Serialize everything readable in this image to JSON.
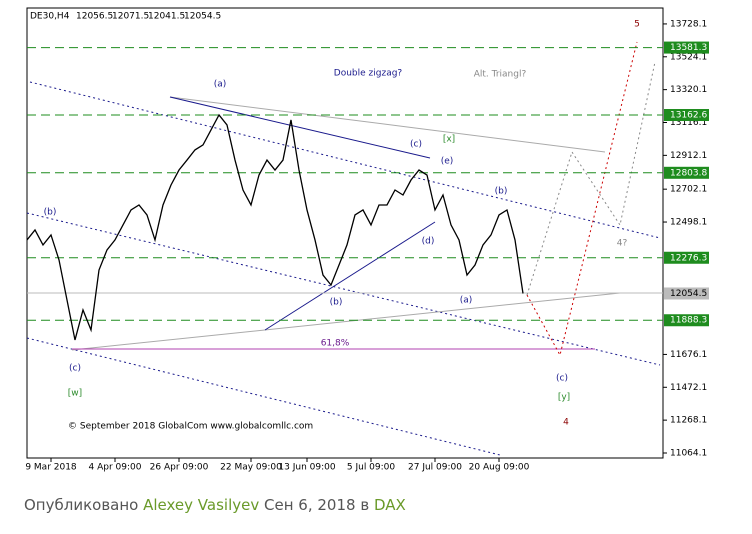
{
  "chart_data": {
    "type": "line",
    "symbol": "DE30,H4",
    "ohlc": [
      12056.5,
      12071.5,
      12041.5,
      12054.5
    ],
    "series": [
      {
        "color": "#000000",
        "values": [
          12387,
          12449,
          12356,
          12418,
          12263,
          12014,
          11766,
          11952,
          11828,
          12200,
          12325,
          12387,
          12480,
          12573,
          12604,
          12542,
          12387,
          12604,
          12728,
          12821,
          12883,
          12946,
          12977,
          13070,
          13163,
          13101,
          12883,
          12697,
          12604,
          12790,
          12883,
          12821,
          12883,
          13132,
          12821,
          12573,
          12387,
          12169,
          12107,
          12231,
          12356,
          12542,
          12573,
          12480,
          12604,
          12604,
          12697,
          12666,
          12759,
          12821,
          12790,
          12573,
          12666,
          12480,
          12387,
          12169,
          12231,
          12356,
          12418,
          12542,
          12573,
          12387,
          12054.5
        ]
      }
    ],
    "xlim": [
      0,
      79.5
    ],
    "xticks": [
      {
        "value": 3,
        "label": "9 Mar 2018"
      },
      {
        "value": 11,
        "label": "4 Apr 09:00"
      },
      {
        "value": 19,
        "label": "26 Apr 09:00"
      },
      {
        "value": 28,
        "label": "22 May 09:00"
      },
      {
        "value": 35,
        "label": "13 Jun 09:00"
      },
      {
        "value": 43,
        "label": "5 Jul 09:00"
      },
      {
        "value": 51,
        "label": "27 Jul 09:00"
      },
      {
        "value": 59,
        "label": "20 Aug 09:00"
      }
    ],
    "ylim": [
      11033,
      13827
    ],
    "yticks": [
      13728.1,
      13524.1,
      13320.1,
      13116.1,
      12912.1,
      12702.1,
      12498.1,
      11676.1,
      11472.1,
      11268.1,
      11064.1
    ],
    "levels": [
      13581.3,
      13162.6,
      12803.8,
      12276.3,
      11888.3
    ],
    "level_color": "#1e8c1e",
    "annotations": [
      {
        "text": "(a)",
        "color": "#1a1a8c"
      },
      {
        "text": "Double zigzag?",
        "color": "#1a1a8c"
      },
      {
        "text": "Alt. Triangl?",
        "color": "#888888"
      },
      {
        "text": "5",
        "color": "#8b0000"
      },
      {
        "text": "[x]",
        "color": "#2a8a2a"
      },
      {
        "text": "(c)",
        "color": "#1a1a8c"
      },
      {
        "text": "(e)",
        "color": "#1a1a8c"
      },
      {
        "text": "(b)",
        "color": "#1a1a8c"
      },
      {
        "text": "(d)",
        "color": "#1a1a8c"
      },
      {
        "text": "4?",
        "color": "#888888"
      },
      {
        "text": "(b)",
        "color": "#1a1a8c"
      },
      {
        "text": "(b)",
        "color": "#1a1a8c"
      },
      {
        "text": "(a)",
        "color": "#1a1a8c"
      },
      {
        "text": "61,8%",
        "color": "#6a1a8c"
      },
      {
        "text": "(c)",
        "color": "#1a1a8c"
      },
      {
        "text": "[w]",
        "color": "#2a8a2a"
      },
      {
        "text": "(c)",
        "color": "#1a1a8c"
      },
      {
        "text": "[y]",
        "color": "#2a8a2a"
      },
      {
        "text": "4",
        "color": "#8b0000"
      },
      {
        "text": "© September 2018 GlobalCom www.globalcomllc.com",
        "color": "#000000"
      }
    ]
  },
  "footer": {
    "prefix": "Опубликовано",
    "author": "Alexey Vasilyev",
    "date": "Сен 6, 2018",
    "in": "в",
    "market": "DAX"
  }
}
